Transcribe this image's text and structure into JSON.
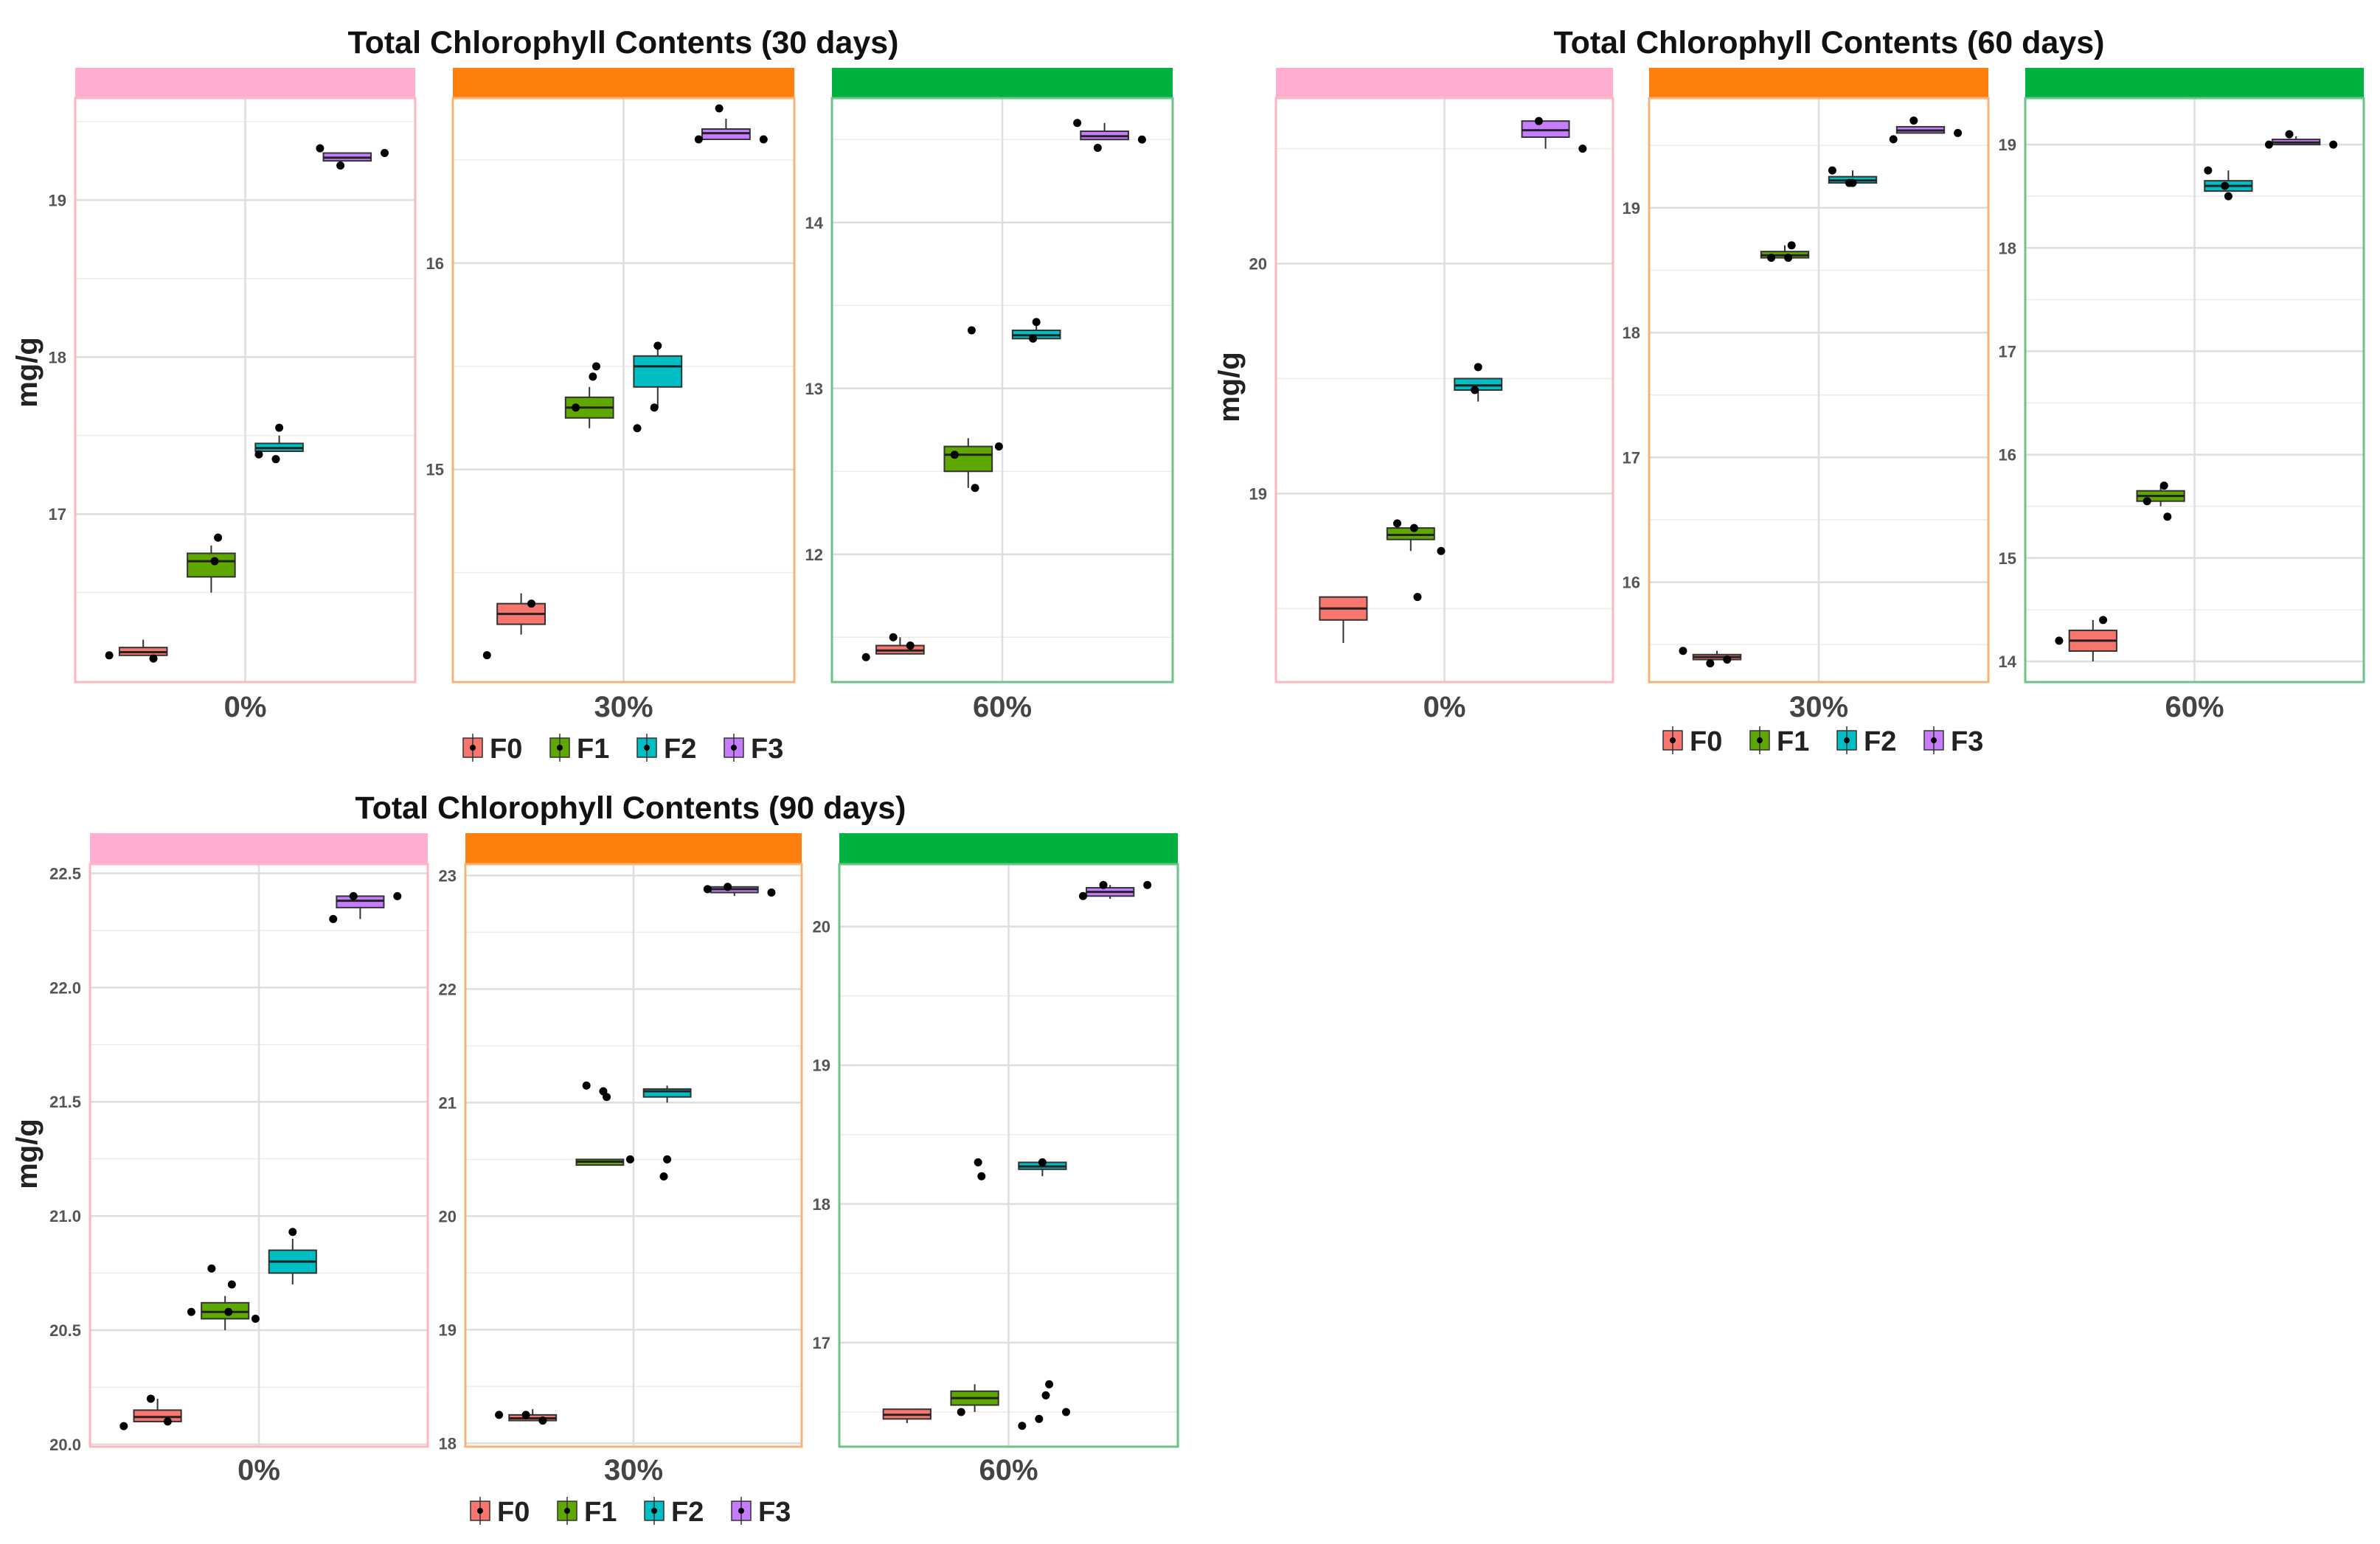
{
  "colors": {
    "F0": "#f8766d",
    "F1": "#5fa800",
    "F2": "#00bfc4",
    "F3": "#c77cff",
    "strip_0": "#ffadd0",
    "strip_30": "#ff7f0e",
    "strip_60": "#00b140",
    "border_0": "#ffb6c1",
    "border_30": "#f5b37a",
    "border_60": "#6cc48a",
    "grid": "#dedede",
    "point": "#000000"
  },
  "chart_data": [
    {
      "type": "boxplot",
      "title": "Total Chlorophyll Contents (30 days)",
      "ylabel": "mg/g",
      "legend": [
        "F0",
        "F1",
        "F2",
        "F3"
      ],
      "facets": [
        {
          "label": "0%",
          "strip": "0",
          "ylim": [
            15.93,
            19.65
          ],
          "yticks": [
            17,
            18,
            19
          ],
          "groups": [
            {
              "name": "F0",
              "q1": 16.1,
              "median": 16.12,
              "q3": 16.15,
              "lo": 16.1,
              "hi": 16.2,
              "points": [
                16.1,
                16.08
              ]
            },
            {
              "name": "F1",
              "q1": 16.6,
              "median": 16.7,
              "q3": 16.75,
              "lo": 16.5,
              "hi": 16.8,
              "points": [
                16.85,
                16.7
              ]
            },
            {
              "name": "F2",
              "q1": 17.4,
              "median": 17.42,
              "q3": 17.45,
              "lo": 17.4,
              "hi": 17.5,
              "points": [
                17.55,
                17.35,
                17.38
              ]
            },
            {
              "name": "F3",
              "q1": 19.25,
              "median": 19.27,
              "q3": 19.3,
              "lo": 19.25,
              "hi": 19.3,
              "points": [
                19.22,
                19.3,
                19.33
              ]
            }
          ]
        },
        {
          "label": "30%",
          "strip": "30",
          "ylim": [
            13.97,
            16.8
          ],
          "yticks": [
            15,
            16
          ],
          "groups": [
            {
              "name": "F0",
              "q1": 14.25,
              "median": 14.3,
              "q3": 14.35,
              "lo": 14.2,
              "hi": 14.4,
              "points": [
                14.1,
                14.35
              ]
            },
            {
              "name": "F1",
              "q1": 15.25,
              "median": 15.3,
              "q3": 15.35,
              "lo": 15.2,
              "hi": 15.4,
              "points": [
                15.5,
                15.45,
                15.3
              ]
            },
            {
              "name": "F2",
              "q1": 15.4,
              "median": 15.5,
              "q3": 15.55,
              "lo": 15.3,
              "hi": 15.6,
              "points": [
                15.6,
                15.3,
                15.2
              ]
            },
            {
              "name": "F3",
              "q1": 16.6,
              "median": 16.63,
              "q3": 16.65,
              "lo": 16.6,
              "hi": 16.7,
              "points": [
                16.75,
                16.6,
                16.6
              ]
            }
          ]
        },
        {
          "label": "60%",
          "strip": "60",
          "ylim": [
            11.23,
            14.75
          ],
          "yticks": [
            12,
            13,
            14
          ],
          "groups": [
            {
              "name": "F0",
              "q1": 11.4,
              "median": 11.42,
              "q3": 11.45,
              "lo": 11.4,
              "hi": 11.5,
              "points": [
                11.38,
                11.45,
                11.5
              ]
            },
            {
              "name": "F1",
              "q1": 12.5,
              "median": 12.6,
              "q3": 12.65,
              "lo": 12.4,
              "hi": 12.7,
              "points": [
                12.4,
                13.35,
                12.6,
                12.65
              ]
            },
            {
              "name": "F2",
              "q1": 13.3,
              "median": 13.32,
              "q3": 13.35,
              "lo": 13.3,
              "hi": 13.4,
              "points": [
                13.4,
                13.3
              ]
            },
            {
              "name": "F3",
              "q1": 14.5,
              "median": 14.52,
              "q3": 14.55,
              "lo": 14.5,
              "hi": 14.6,
              "points": [
                14.45,
                14.5,
                14.6
              ]
            }
          ]
        }
      ]
    },
    {
      "type": "boxplot",
      "title": "Total Chlorophyll Contents (60 days)",
      "ylabel": "mg/g",
      "legend": [
        "F0",
        "F1",
        "F2",
        "F3"
      ],
      "facets": [
        {
          "label": "0%",
          "strip": "0",
          "ylim": [
            18.18,
            20.72
          ],
          "yticks": [
            19,
            20
          ],
          "groups": [
            {
              "name": "F0",
              "q1": 18.45,
              "median": 18.5,
              "q3": 18.55,
              "lo": 18.35,
              "hi": 18.55,
              "points": []
            },
            {
              "name": "F1",
              "q1": 18.8,
              "median": 18.82,
              "q3": 18.85,
              "lo": 18.75,
              "hi": 18.85,
              "points": [
                18.55,
                18.85,
                18.87,
                18.75
              ]
            },
            {
              "name": "F2",
              "q1": 19.45,
              "median": 19.47,
              "q3": 19.5,
              "lo": 19.4,
              "hi": 19.5,
              "points": [
                19.55,
                19.45
              ]
            },
            {
              "name": "F3",
              "q1": 20.55,
              "median": 20.58,
              "q3": 20.62,
              "lo": 20.5,
              "hi": 20.62,
              "points": [
                20.62,
                20.5
              ]
            }
          ]
        },
        {
          "label": "30%",
          "strip": "30",
          "ylim": [
            15.2,
            19.88
          ],
          "yticks": [
            16,
            17,
            18,
            19
          ],
          "groups": [
            {
              "name": "F0",
              "q1": 15.38,
              "median": 15.4,
              "q3": 15.42,
              "lo": 15.38,
              "hi": 15.45,
              "points": [
                15.45,
                15.38,
                15.35
              ]
            },
            {
              "name": "F1",
              "q1": 18.6,
              "median": 18.62,
              "q3": 18.65,
              "lo": 18.6,
              "hi": 18.7,
              "points": [
                18.7,
                18.6,
                18.6
              ]
            },
            {
              "name": "F2",
              "q1": 19.2,
              "median": 19.22,
              "q3": 19.25,
              "lo": 19.2,
              "hi": 19.3,
              "points": [
                19.2,
                19.2,
                19.3
              ]
            },
            {
              "name": "F3",
              "q1": 19.6,
              "median": 19.62,
              "q3": 19.65,
              "lo": 19.6,
              "hi": 19.65,
              "points": [
                19.7,
                19.6,
                19.55
              ]
            }
          ]
        },
        {
          "label": "60%",
          "strip": "60",
          "ylim": [
            13.8,
            19.45
          ],
          "yticks": [
            14,
            15,
            16,
            17,
            18,
            19
          ],
          "groups": [
            {
              "name": "F0",
              "q1": 14.1,
              "median": 14.2,
              "q3": 14.3,
              "lo": 14.0,
              "hi": 14.4,
              "points": [
                14.2,
                14.4
              ]
            },
            {
              "name": "F1",
              "q1": 15.55,
              "median": 15.6,
              "q3": 15.65,
              "lo": 15.5,
              "hi": 15.7,
              "points": [
                15.4,
                15.7,
                15.55
              ]
            },
            {
              "name": "F2",
              "q1": 18.55,
              "median": 18.6,
              "q3": 18.65,
              "lo": 18.55,
              "hi": 18.75,
              "points": [
                18.5,
                18.6,
                18.75
              ]
            },
            {
              "name": "F3",
              "q1": 19.0,
              "median": 19.02,
              "q3": 19.05,
              "lo": 19.0,
              "hi": 19.08,
              "points": [
                19.1,
                19.0,
                19.0
              ]
            }
          ]
        }
      ]
    },
    {
      "type": "boxplot",
      "title": "Total Chlorophyll Contents (90 days)",
      "ylabel": "mg/g",
      "legend": [
        "F0",
        "F1",
        "F2",
        "F3"
      ],
      "facets": [
        {
          "label": "0%",
          "strip": "0",
          "ylim": [
            19.99,
            22.54
          ],
          "yticks": [
            20.0,
            20.5,
            21.0,
            21.5,
            22.0,
            22.5
          ],
          "tick_format": "fixed1",
          "groups": [
            {
              "name": "F0",
              "q1": 20.1,
              "median": 20.12,
              "q3": 20.15,
              "lo": 20.1,
              "hi": 20.2,
              "points": [
                20.08,
                20.1,
                20.2
              ]
            },
            {
              "name": "F1",
              "q1": 20.55,
              "median": 20.58,
              "q3": 20.62,
              "lo": 20.5,
              "hi": 20.65,
              "points": [
                20.7,
                20.58,
                20.77,
                20.55,
                20.58
              ]
            },
            {
              "name": "F2",
              "q1": 20.75,
              "median": 20.8,
              "q3": 20.85,
              "lo": 20.7,
              "hi": 20.9,
              "points": [
                20.93
              ]
            },
            {
              "name": "F3",
              "q1": 22.35,
              "median": 22.38,
              "q3": 22.4,
              "lo": 22.3,
              "hi": 22.4,
              "points": [
                22.4,
                22.4,
                22.3
              ]
            }
          ]
        },
        {
          "label": "30%",
          "strip": "30",
          "ylim": [
            17.97,
            23.1
          ],
          "yticks": [
            18,
            19,
            20,
            21,
            22,
            23
          ],
          "groups": [
            {
              "name": "F0",
              "q1": 18.2,
              "median": 18.22,
              "q3": 18.25,
              "lo": 18.2,
              "hi": 18.3,
              "points": [
                18.25,
                18.2,
                18.25
              ]
            },
            {
              "name": "F1",
              "q1": 20.45,
              "median": 20.48,
              "q3": 20.5,
              "lo": 20.45,
              "hi": 20.5,
              "points": [
                21.05,
                21.1,
                21.15,
                20.5
              ]
            },
            {
              "name": "F2",
              "q1": 21.05,
              "median": 21.1,
              "q3": 21.12,
              "lo": 21.0,
              "hi": 21.15,
              "points": [
                20.5,
                20.35
              ]
            },
            {
              "name": "F3",
              "q1": 22.85,
              "median": 22.88,
              "q3": 22.9,
              "lo": 22.82,
              "hi": 22.9,
              "points": [
                22.9,
                22.85,
                22.88
              ]
            }
          ]
        },
        {
          "label": "60%",
          "strip": "60",
          "ylim": [
            16.25,
            20.45
          ],
          "yticks": [
            17,
            18,
            19,
            20
          ],
          "groups": [
            {
              "name": "F0",
              "q1": 16.45,
              "median": 16.48,
              "q3": 16.52,
              "lo": 16.42,
              "hi": 16.52,
              "points": []
            },
            {
              "name": "F1",
              "q1": 16.55,
              "median": 16.6,
              "q3": 16.65,
              "lo": 16.5,
              "hi": 16.7,
              "points": [
                18.2,
                18.3,
                16.5
              ]
            },
            {
              "name": "F2",
              "q1": 18.25,
              "median": 18.27,
              "q3": 18.3,
              "lo": 18.2,
              "hi": 18.3,
              "points": [
                18.3,
                16.45,
                16.4,
                16.5,
                16.7,
                16.62
              ]
            },
            {
              "name": "F3",
              "q1": 20.22,
              "median": 20.25,
              "q3": 20.28,
              "lo": 20.2,
              "hi": 20.3,
              "points": [
                20.3,
                20.3,
                20.22
              ]
            }
          ]
        }
      ]
    }
  ]
}
